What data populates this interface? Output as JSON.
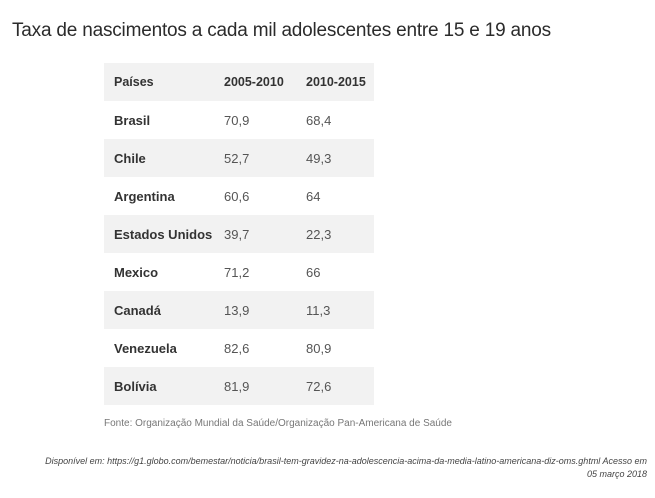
{
  "title": "Taxa de nascimentos a cada mil adolescentes entre 15 e 19 anos",
  "table": {
    "headers": [
      "Países",
      "2005-2010",
      "2010-2015"
    ],
    "rows": [
      {
        "country": "Brasil",
        "v1": "70,9",
        "v2": "68,4"
      },
      {
        "country": "Chile",
        "v1": "52,7",
        "v2": "49,3"
      },
      {
        "country": "Argentina",
        "v1": "60,6",
        "v2": "64"
      },
      {
        "country": "Estados Unidos",
        "v1": "39,7",
        "v2": "22,3"
      },
      {
        "country": "Mexico",
        "v1": "71,2",
        "v2": "66"
      },
      {
        "country": "Canadá",
        "v1": "13,9",
        "v2": "11,3"
      },
      {
        "country": "Venezuela",
        "v1": "82,6",
        "v2": "80,9"
      },
      {
        "country": "Bolívia",
        "v1": "81,9",
        "v2": "72,6"
      }
    ]
  },
  "source": "Fonte: Organização Mundial da Saúde/Organização Pan-Americana de Saúde",
  "reference": {
    "line1": "Disponível em: https://g1.globo.com/bemestar/noticia/brasil-tem-gravidez-na-adolescencia-acima-da-media-latino-americana-diz-oms.ghtml Acesso em",
    "line2": "05 março 2018"
  }
}
